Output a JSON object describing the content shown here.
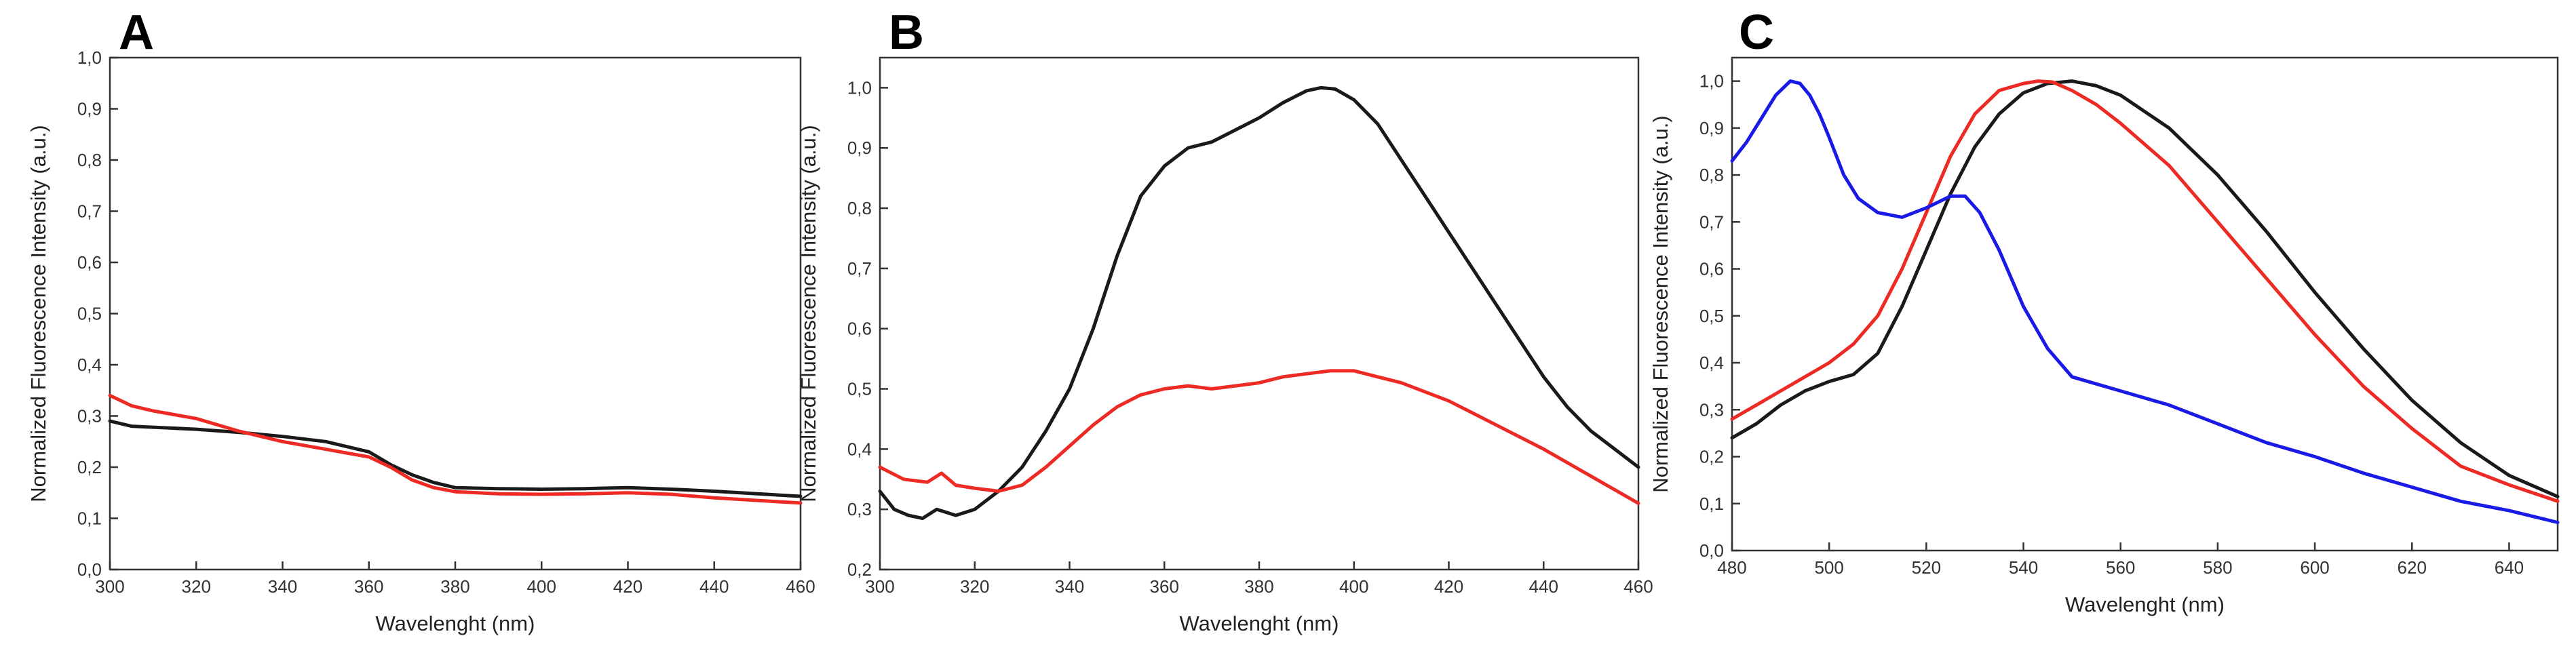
{
  "figure": {
    "panels": [
      "A",
      "B",
      "C"
    ]
  },
  "colors": {
    "black": "#1a1a1a",
    "red": "#ee2a24",
    "blue": "#1a1ae6",
    "axis": "#333333"
  },
  "chart_data": [
    {
      "panel": "A",
      "type": "line",
      "title": "",
      "xlabel": "Wavelenght (nm)",
      "ylabel": "Normalized Fluorescence Intensity (a.u.)",
      "xlim": [
        300,
        460
      ],
      "ylim": [
        0.0,
        1.0
      ],
      "xticks": [
        300,
        320,
        340,
        360,
        380,
        400,
        420,
        440,
        460
      ],
      "xtick_labels": [
        "300",
        "320",
        "340",
        "360",
        "380",
        "400",
        "420",
        "440",
        "460"
      ],
      "yticks": [
        0.0,
        0.1,
        0.2,
        0.3,
        0.4,
        0.5,
        0.6,
        0.7,
        0.8,
        0.9,
        1.0
      ],
      "ytick_labels": [
        "0,0",
        "0,1",
        "0,2",
        "0,3",
        "0,4",
        "0,5",
        "0,6",
        "0,7",
        "0,8",
        "0,9",
        "1,0"
      ],
      "series": [
        {
          "color": "black",
          "x": [
            300,
            305,
            310,
            320,
            330,
            340,
            350,
            360,
            365,
            370,
            375,
            380,
            390,
            400,
            410,
            420,
            430,
            440,
            450,
            460
          ],
          "y": [
            0.29,
            0.28,
            0.278,
            0.274,
            0.268,
            0.26,
            0.25,
            0.23,
            0.205,
            0.185,
            0.17,
            0.16,
            0.158,
            0.157,
            0.158,
            0.16,
            0.157,
            0.153,
            0.148,
            0.143
          ]
        },
        {
          "color": "red",
          "x": [
            300,
            305,
            310,
            320,
            330,
            340,
            350,
            360,
            365,
            370,
            375,
            380,
            390,
            400,
            410,
            420,
            430,
            440,
            450,
            460
          ],
          "y": [
            0.34,
            0.32,
            0.31,
            0.295,
            0.27,
            0.25,
            0.235,
            0.22,
            0.2,
            0.175,
            0.16,
            0.152,
            0.148,
            0.147,
            0.148,
            0.15,
            0.147,
            0.14,
            0.135,
            0.13
          ]
        }
      ]
    },
    {
      "panel": "B",
      "type": "line",
      "title": "",
      "xlabel": "Wavelenght (nm)",
      "ylabel": "Normalized Fluorescence Intensity (a.u.)",
      "xlim": [
        300,
        460
      ],
      "ylim": [
        0.2,
        1.05
      ],
      "xticks": [
        300,
        320,
        340,
        360,
        380,
        400,
        420,
        440,
        460
      ],
      "xtick_labels": [
        "300",
        "320",
        "340",
        "360",
        "380",
        "400",
        "420",
        "440",
        "460"
      ],
      "yticks": [
        0.2,
        0.3,
        0.4,
        0.5,
        0.6,
        0.7,
        0.8,
        0.9,
        1.0
      ],
      "ytick_labels": [
        "0,2",
        "0,3",
        "0,4",
        "0,5",
        "0,6",
        "0,7",
        "0,8",
        "0,9",
        "1,0"
      ],
      "series": [
        {
          "color": "black",
          "x": [
            300,
            303,
            306,
            309,
            312,
            316,
            320,
            325,
            330,
            335,
            340,
            345,
            350,
            355,
            360,
            365,
            370,
            375,
            380,
            385,
            390,
            393,
            396,
            400,
            405,
            410,
            415,
            420,
            425,
            430,
            435,
            440,
            445,
            450,
            455,
            460
          ],
          "y": [
            0.33,
            0.3,
            0.29,
            0.285,
            0.3,
            0.29,
            0.3,
            0.33,
            0.37,
            0.43,
            0.5,
            0.6,
            0.72,
            0.82,
            0.87,
            0.9,
            0.91,
            0.93,
            0.95,
            0.975,
            0.995,
            1.0,
            0.998,
            0.98,
            0.94,
            0.88,
            0.82,
            0.76,
            0.7,
            0.64,
            0.58,
            0.52,
            0.47,
            0.43,
            0.4,
            0.37
          ]
        },
        {
          "color": "red",
          "x": [
            300,
            305,
            310,
            313,
            316,
            320,
            325,
            330,
            335,
            340,
            345,
            350,
            355,
            360,
            365,
            370,
            375,
            380,
            385,
            390,
            395,
            400,
            405,
            410,
            420,
            430,
            440,
            450,
            460
          ],
          "y": [
            0.37,
            0.35,
            0.345,
            0.36,
            0.34,
            0.335,
            0.33,
            0.34,
            0.37,
            0.405,
            0.44,
            0.47,
            0.49,
            0.5,
            0.505,
            0.5,
            0.505,
            0.51,
            0.52,
            0.525,
            0.53,
            0.53,
            0.52,
            0.51,
            0.48,
            0.44,
            0.4,
            0.355,
            0.31
          ]
        }
      ]
    },
    {
      "panel": "C",
      "type": "line",
      "title": "",
      "xlabel": "Wavelenght (nm)",
      "ylabel": "Normalized Fluorescence Intensity (a.u.)",
      "xlim": [
        480,
        650
      ],
      "ylim": [
        0.0,
        1.05
      ],
      "xticks": [
        480,
        500,
        520,
        540,
        560,
        580,
        600,
        620,
        640
      ],
      "xtick_labels": [
        "480",
        "500",
        "520",
        "540",
        "560",
        "580",
        "600",
        "620",
        "640"
      ],
      "yticks": [
        0.0,
        0.1,
        0.2,
        0.3,
        0.4,
        0.5,
        0.6,
        0.7,
        0.8,
        0.9,
        1.0
      ],
      "ytick_labels": [
        "0,0",
        "0,1",
        "0,2",
        "0,3",
        "0,4",
        "0,5",
        "0,6",
        "0,7",
        "0,8",
        "0,9",
        "1,0"
      ],
      "series": [
        {
          "color": "black",
          "x": [
            480,
            485,
            490,
            495,
            500,
            505,
            510,
            515,
            520,
            525,
            530,
            535,
            540,
            545,
            550,
            555,
            560,
            570,
            580,
            590,
            600,
            610,
            620,
            630,
            640,
            650
          ],
          "y": [
            0.24,
            0.27,
            0.31,
            0.34,
            0.36,
            0.375,
            0.42,
            0.52,
            0.64,
            0.76,
            0.86,
            0.93,
            0.975,
            0.995,
            1.0,
            0.99,
            0.97,
            0.9,
            0.8,
            0.68,
            0.55,
            0.43,
            0.32,
            0.23,
            0.16,
            0.115
          ]
        },
        {
          "color": "red",
          "x": [
            480,
            485,
            490,
            495,
            500,
            505,
            510,
            515,
            520,
            525,
            530,
            535,
            540,
            543,
            546,
            550,
            555,
            560,
            570,
            580,
            590,
            600,
            610,
            620,
            630,
            640,
            650
          ],
          "y": [
            0.28,
            0.31,
            0.34,
            0.37,
            0.4,
            0.44,
            0.5,
            0.6,
            0.72,
            0.84,
            0.93,
            0.98,
            0.995,
            1.0,
            0.998,
            0.98,
            0.95,
            0.91,
            0.82,
            0.7,
            0.58,
            0.46,
            0.35,
            0.26,
            0.18,
            0.14,
            0.105
          ]
        },
        {
          "color": "blue",
          "x": [
            480,
            483,
            486,
            489,
            492,
            494,
            496,
            498,
            500,
            503,
            506,
            510,
            515,
            520,
            525,
            528,
            531,
            535,
            540,
            545,
            550,
            560,
            570,
            580,
            590,
            600,
            610,
            620,
            630,
            640,
            650
          ],
          "y": [
            0.83,
            0.87,
            0.92,
            0.97,
            1.0,
            0.995,
            0.97,
            0.93,
            0.88,
            0.8,
            0.75,
            0.72,
            0.71,
            0.73,
            0.755,
            0.755,
            0.72,
            0.64,
            0.52,
            0.43,
            0.37,
            0.34,
            0.31,
            0.27,
            0.23,
            0.2,
            0.165,
            0.135,
            0.105,
            0.085,
            0.06
          ]
        }
      ]
    }
  ]
}
